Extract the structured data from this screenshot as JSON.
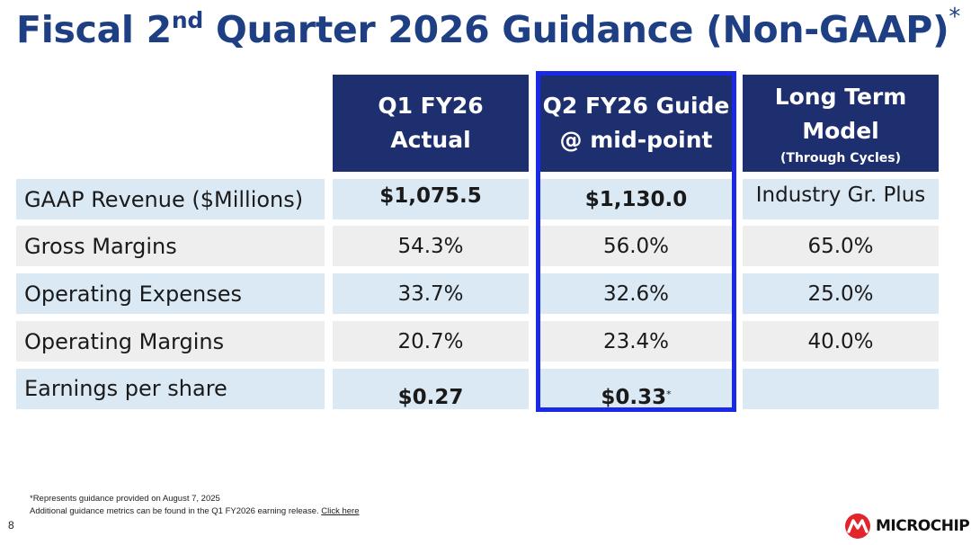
{
  "slide": {
    "title_prefix": "Fiscal 2",
    "title_sup": "nd",
    "title_suffix": " Quarter 2026 Guidance (Non-GAAP)",
    "title_asterisk": "*",
    "page_number": "8"
  },
  "table": {
    "headers": [
      {
        "line1": "Q1 FY26",
        "line2": "Actual"
      },
      {
        "line1": "Q2 FY26 Guide",
        "line2": "@ mid-point"
      },
      {
        "line1": "Long Term",
        "line2": "Model",
        "note": "(Through Cycles)"
      }
    ],
    "rows": [
      {
        "label": "GAAP Revenue ($Millions)",
        "q1": "$1,075.5",
        "q2": "$1,130.0",
        "lt": "Industry Gr. Plus"
      },
      {
        "label": "Gross Margins",
        "q1": "54.3%",
        "q2": "56.0%",
        "lt": "65.0%"
      },
      {
        "label": "Operating Expenses",
        "q1": "33.7%",
        "q2": "32.6%",
        "lt": "25.0%"
      },
      {
        "label": "Operating Margins",
        "q1": "20.7%",
        "q2": "23.4%",
        "lt": "40.0%"
      },
      {
        "label": "Earnings per share",
        "q1": "$0.27",
        "q2": "$0.33",
        "q2_mark": "*",
        "lt": ""
      }
    ]
  },
  "footnotes": {
    "line1": "*Represents guidance provided on August 7, 2025",
    "line2": "Additional guidance metrics can be found in the Q1 FY2026 earning release. ",
    "link": "Click here"
  },
  "brand": {
    "name": "MICROCHIP",
    "title_color": "#1f3f84",
    "header_color": "#1d2f6e",
    "highlight_color": "#1a28e8",
    "logo_color": "#e2242b"
  }
}
